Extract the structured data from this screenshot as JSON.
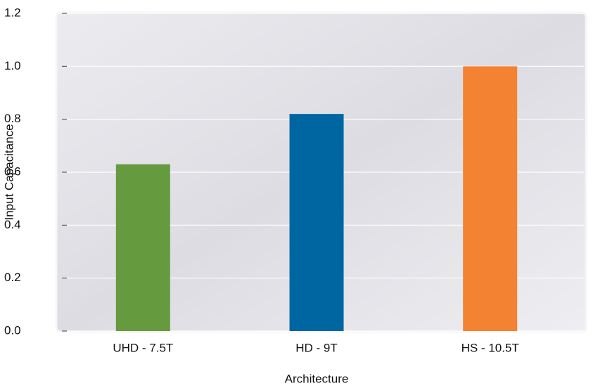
{
  "chart_data": {
    "type": "bar",
    "x_label": "Architecture",
    "y_label": "Input Capacitance",
    "categories": [
      "UHD - 7.5T",
      "HD - 9T",
      "HS - 10.5T"
    ],
    "values": [
      0.63,
      0.82,
      1.0
    ],
    "colors": [
      "#669a3f",
      "#0066a2",
      "#f38232"
    ],
    "ylim": [
      0,
      1.2
    ],
    "yticks": [
      {
        "value": 0,
        "label": "0.0"
      },
      0.2,
      0.4,
      0.6,
      0.8,
      {
        "value": 1,
        "label": "1.0"
      },
      1.2
    ],
    "grid": true
  }
}
